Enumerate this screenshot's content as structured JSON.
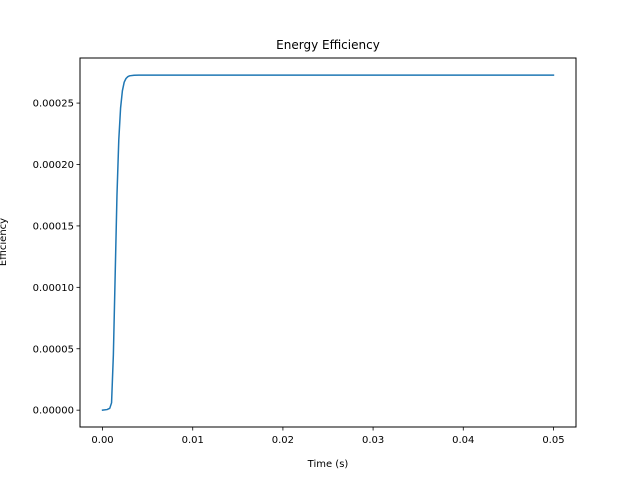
{
  "chart_data": {
    "type": "line",
    "title": "Energy Efficiency",
    "xlabel": "Time (s)",
    "ylabel": "Efficiency",
    "xlim": [
      -0.0025,
      0.0525
    ],
    "ylim": [
      -1.37e-05,
      0.0002867
    ],
    "grid": false,
    "legend": "none",
    "xticks": [
      0.0,
      0.01,
      0.02,
      0.03,
      0.04,
      0.05
    ],
    "xtick_labels": [
      "0.00",
      "0.01",
      "0.02",
      "0.03",
      "0.04",
      "0.05"
    ],
    "yticks": [
      0.0,
      5e-05,
      0.0001,
      0.00015,
      0.0002,
      0.00025
    ],
    "ytick_labels": [
      "0.00000",
      "0.00005",
      "0.00010",
      "0.00015",
      "0.00020",
      "0.00025"
    ],
    "series": [
      {
        "color": "#1f77b4",
        "x": [
          0.0,
          0.0005,
          0.0008,
          0.001,
          0.0012,
          0.0014,
          0.0016,
          0.0018,
          0.002,
          0.0022,
          0.0024,
          0.0026,
          0.0028,
          0.003,
          0.0035,
          0.004,
          0.005,
          0.01,
          0.02,
          0.03,
          0.04,
          0.05
        ],
        "y": [
          0.0,
          5e-07,
          1.5e-06,
          6e-06,
          4.5e-05,
          0.00011,
          0.000175,
          0.00022,
          0.000246,
          0.00026,
          0.000267,
          0.00027,
          0.0002715,
          0.0002722,
          0.0002727,
          0.0002728,
          0.0002728,
          0.0002728,
          0.0002728,
          0.0002728,
          0.0002728,
          0.0002728
        ]
      }
    ]
  }
}
